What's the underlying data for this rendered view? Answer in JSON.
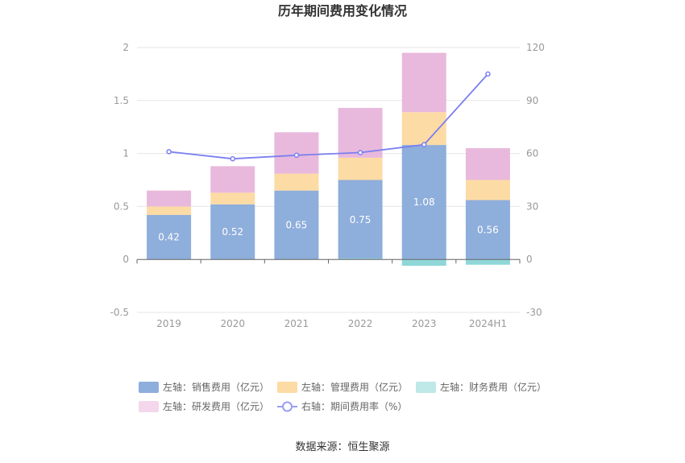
{
  "chart_data": {
    "type": "bar",
    "title": "历年期间费用变化情况",
    "categories": [
      "2019",
      "2020",
      "2021",
      "2022",
      "2023",
      "2024H1"
    ],
    "left_axis": {
      "ylim": [
        -0.5,
        2
      ],
      "ticks": [
        "2",
        "1.5",
        "1",
        "0.5",
        "0",
        "-0.5"
      ]
    },
    "right_axis": {
      "ylim": [
        -30,
        120
      ],
      "ticks": [
        "120",
        "90",
        "60",
        "30",
        "0",
        "-30"
      ]
    },
    "series": [
      {
        "name": "左轴：销售费用（亿元）",
        "type": "bar",
        "axis": "left",
        "color": "#8eaedb",
        "values": [
          0.42,
          0.52,
          0.65,
          0.75,
          1.08,
          0.56
        ],
        "labels": [
          "0.42",
          "0.52",
          "0.65",
          "0.75",
          "1.08",
          "0.56"
        ]
      },
      {
        "name": "左轴：管理费用（亿元）",
        "type": "bar",
        "axis": "left",
        "color": "#fddba4",
        "values": [
          0.08,
          0.11,
          0.16,
          0.21,
          0.31,
          0.19
        ]
      },
      {
        "name": "左轴：财务费用（亿元）",
        "type": "bar",
        "axis": "left",
        "color": "#8fd6d8",
        "values": [
          0.0,
          0.0,
          0.0,
          0.01,
          -0.06,
          -0.05
        ]
      },
      {
        "name": "左轴：研发费用（亿元）",
        "type": "bar",
        "axis": "left",
        "color": "#e8b9dc",
        "values": [
          0.15,
          0.25,
          0.39,
          0.47,
          0.56,
          0.3
        ]
      },
      {
        "name": "右轴：期间费用率（%）",
        "type": "line",
        "axis": "right",
        "color": "#7b7ff0",
        "values": [
          61,
          57,
          59,
          60.5,
          65,
          105
        ]
      }
    ],
    "legend_position": "bottom",
    "grid": true
  },
  "legend_colors": {
    "sales": "#8eaedb",
    "admin": "#fddba4",
    "finance": "#bfe8e8",
    "rnd": "#f4d7ec",
    "rate": "#9a9df5"
  },
  "source": "数据来源：恒生聚源"
}
